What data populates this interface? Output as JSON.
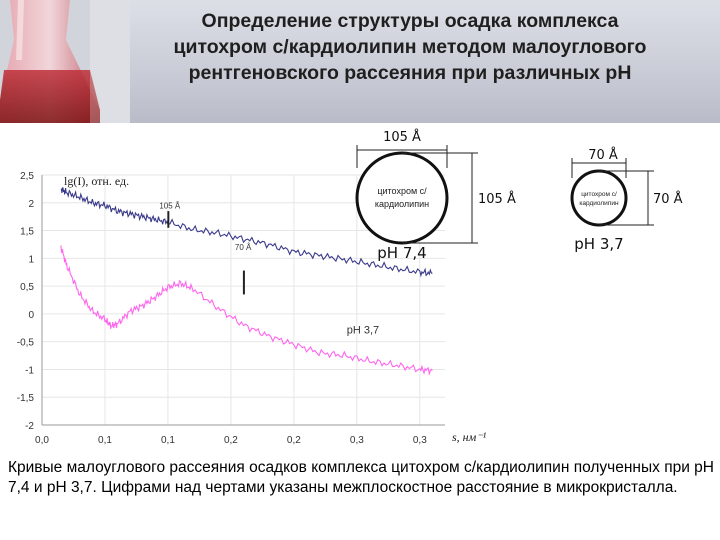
{
  "slide": {
    "title": "Определение структуры осадка комплекса\nцитохром c/кардиолипин методом малоуглового\nрентгеновского рассеяния при различных рН",
    "caption": "Кривые малоуглового  рассеяния осадков комплекса цитохром c/кардиолипин полученных при рН 7,4 и рН 3,7. Цифрами над чертами указаны межплоскостное расстояние в микрокристалла."
  },
  "diagrams": [
    {
      "top_dim": "105 Å",
      "right_dim": "105 Å",
      "circle_text": [
        "цитохром с/",
        "кардиолипин"
      ],
      "ph_label": "рН 7,4"
    },
    {
      "top_dim": "70 Å",
      "right_dim": "70 Å",
      "circle_text": [
        "цитохром с/",
        "кардиолипин"
      ],
      "ph_label": "рН 3,7"
    }
  ],
  "chart_data": {
    "type": "line",
    "ylabel": "lg(I), отн. ед.",
    "xlabel": "s, нм⁻¹",
    "xlim": [
      0,
      0.32
    ],
    "ylim": [
      -2,
      2.5
    ],
    "xticks": [
      "0,0",
      "0,1",
      "0,1",
      "0,2",
      "0,2",
      "0,3",
      "0,3"
    ],
    "xtick_values": [
      0,
      0.05,
      0.1,
      0.15,
      0.2,
      0.25,
      0.3
    ],
    "yticks": [
      "2,5",
      "2",
      "1,5",
      "1",
      "0,5",
      "0",
      "-0,5",
      "-1",
      "-1,5",
      "-2"
    ],
    "ytick_values": [
      2.5,
      2,
      1.5,
      1,
      0.5,
      0,
      -0.5,
      -1,
      -1.5,
      -2
    ],
    "colors": {
      "ph74": "#3a3a8a",
      "ph37": "#ff66ee"
    },
    "series": [
      {
        "name": "рН 7,4",
        "x": [
          0.015,
          0.02,
          0.03,
          0.04,
          0.05,
          0.06,
          0.07,
          0.08,
          0.09,
          0.1,
          0.12,
          0.14,
          0.16,
          0.18,
          0.2,
          0.22,
          0.24,
          0.26,
          0.28,
          0.3,
          0.31
        ],
        "y": [
          2.25,
          2.18,
          2.1,
          2.0,
          1.95,
          1.85,
          1.8,
          1.75,
          1.7,
          1.65,
          1.52,
          1.45,
          1.35,
          1.25,
          1.12,
          1.05,
          0.98,
          0.9,
          0.82,
          0.75,
          0.73
        ]
      },
      {
        "name": "рН 3,7",
        "x": [
          0.015,
          0.02,
          0.03,
          0.04,
          0.05,
          0.055,
          0.06,
          0.07,
          0.08,
          0.09,
          0.1,
          0.11,
          0.12,
          0.14,
          0.16,
          0.18,
          0.2,
          0.22,
          0.24,
          0.26,
          0.28,
          0.3,
          0.31
        ],
        "y": [
          1.2,
          0.85,
          0.35,
          0.05,
          -0.1,
          -0.22,
          -0.18,
          0.05,
          0.15,
          0.3,
          0.48,
          0.55,
          0.45,
          0.1,
          -0.2,
          -0.4,
          -0.55,
          -0.7,
          -0.75,
          -0.85,
          -0.92,
          -1.0,
          -1.02
        ]
      }
    ],
    "annotations": [
      {
        "text": "105 Å",
        "x": 0.09,
        "y": 1.9,
        "mark_y": [
          1.55,
          1.85
        ]
      },
      {
        "text": "70 Å",
        "x": 0.15,
        "y": 1.15,
        "mark_y": [
          0.35,
          0.78
        ]
      }
    ],
    "series_labels": [
      {
        "text": "pH 3,7",
        "x": 0.242,
        "y": -0.35
      }
    ]
  }
}
